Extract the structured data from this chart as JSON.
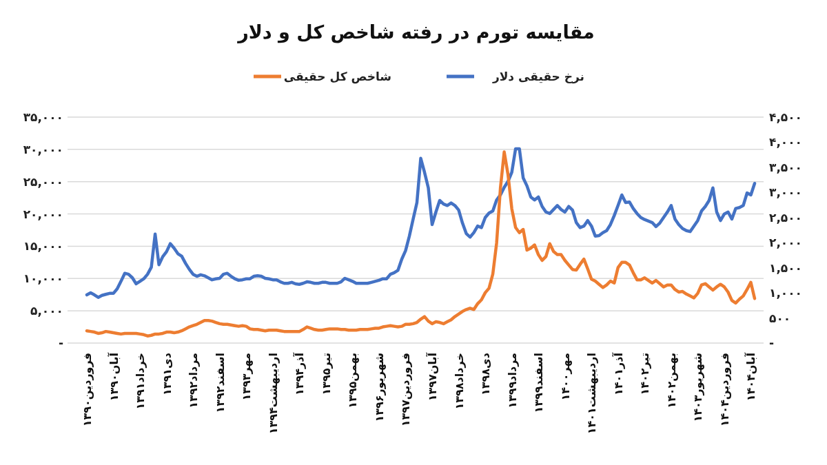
{
  "chart_data": {
    "type": "line",
    "title": "مقایسه تورم در رفته شاخص کل و دلار",
    "categories": [
      "فروردین۱۳۹۰",
      null,
      null,
      null,
      null,
      null,
      null,
      "آبان۱۳۹۰",
      null,
      null,
      null,
      null,
      null,
      null,
      "خرداد۱۳۹۱",
      null,
      null,
      null,
      null,
      null,
      null,
      "دی۱۳۹۱",
      null,
      null,
      null,
      null,
      null,
      null,
      "مرداد۱۳۹۲",
      null,
      null,
      null,
      null,
      null,
      null,
      "اسفند۱۳۹۲",
      null,
      null,
      null,
      null,
      null,
      null,
      "مهر۱۳۹۳",
      null,
      null,
      null,
      null,
      null,
      null,
      "اردیبهشت۱۳۹۴",
      null,
      null,
      null,
      null,
      null,
      null,
      "آذر۱۳۹۴",
      null,
      null,
      null,
      null,
      null,
      null,
      "تیر۱۳۹۵",
      null,
      null,
      null,
      null,
      null,
      null,
      "بهمن۱۳۹۵",
      null,
      null,
      null,
      null,
      null,
      null,
      "شهریور۱۳۹۶",
      null,
      null,
      null,
      null,
      null,
      null,
      "فروردین۱۳۹۷",
      null,
      null,
      null,
      null,
      null,
      null,
      "آبان۱۳۹۷",
      null,
      null,
      null,
      null,
      null,
      null,
      "خرداد۱۳۹۸",
      null,
      null,
      null,
      null,
      null,
      null,
      "دی۱۳۹۸",
      null,
      null,
      null,
      null,
      null,
      null,
      "مرداد۱۳۹۹",
      null,
      null,
      null,
      null,
      null,
      null,
      "اسفند۱۳۹۹",
      null,
      null,
      null,
      null,
      null,
      null,
      "مهر۱۴۰۰",
      null,
      null,
      null,
      null,
      null,
      null,
      "اردیبهشت۱۴۰۱",
      null,
      null,
      null,
      null,
      null,
      null,
      "آذر۱۴۰۱",
      null,
      null,
      null,
      null,
      null,
      null,
      "تیر۱۴۰۲",
      null,
      null,
      null,
      null,
      null,
      null,
      "بهمن۱۴۰۲",
      null,
      null,
      null,
      null,
      null,
      null,
      "شهریور۱۴۰۳",
      null,
      null,
      null,
      null,
      null,
      null,
      "فروردین۱۴۰۴",
      null,
      null,
      null,
      null,
      null,
      null,
      "آبان۱۴۰۴",
      null
    ],
    "series": [
      {
        "name": "نرخ حقیقی دلار",
        "color": "#4472c4",
        "axis": "y2",
        "values": [
          960,
          1000,
          960,
          910,
          950,
          970,
          990,
          990,
          1080,
          1230,
          1390,
          1370,
          1300,
          1180,
          1230,
          1280,
          1370,
          1510,
          2170,
          1560,
          1720,
          1820,
          1980,
          1890,
          1780,
          1730,
          1590,
          1470,
          1370,
          1330,
          1360,
          1340,
          1300,
          1260,
          1280,
          1290,
          1370,
          1390,
          1330,
          1280,
          1250,
          1260,
          1280,
          1280,
          1330,
          1340,
          1330,
          1290,
          1280,
          1260,
          1260,
          1220,
          1190,
          1190,
          1210,
          1180,
          1170,
          1190,
          1220,
          1210,
          1190,
          1190,
          1210,
          1210,
          1190,
          1190,
          1190,
          1220,
          1290,
          1260,
          1230,
          1190,
          1190,
          1190,
          1190,
          1210,
          1230,
          1250,
          1280,
          1280,
          1370,
          1400,
          1450,
          1670,
          1840,
          2130,
          2470,
          2800,
          3680,
          3400,
          3090,
          2360,
          2610,
          2840,
          2770,
          2740,
          2790,
          2740,
          2650,
          2390,
          2180,
          2110,
          2200,
          2330,
          2300,
          2500,
          2590,
          2630,
          2850,
          2950,
          3100,
          3220,
          3400,
          3870,
          3870,
          3290,
          3130,
          2910,
          2850,
          2910,
          2720,
          2610,
          2580,
          2660,
          2740,
          2660,
          2610,
          2720,
          2650,
          2400,
          2300,
          2330,
          2440,
          2330,
          2130,
          2140,
          2200,
          2240,
          2360,
          2540,
          2740,
          2950,
          2800,
          2810,
          2680,
          2580,
          2500,
          2460,
          2430,
          2400,
          2320,
          2390,
          2500,
          2610,
          2740,
          2470,
          2360,
          2280,
          2240,
          2220,
          2330,
          2440,
          2630,
          2720,
          2840,
          3090,
          2610,
          2440,
          2570,
          2610,
          2470,
          2680,
          2700,
          2740,
          2990,
          2950,
          3180
        ]
      },
      {
        "name": "شاخص کل حقیقی",
        "color": "#ed7d31",
        "values": [
          1900,
          1800,
          1700,
          1500,
          1600,
          1800,
          1700,
          1600,
          1500,
          1400,
          1500,
          1500,
          1500,
          1500,
          1400,
          1300,
          1100,
          1200,
          1400,
          1400,
          1500,
          1700,
          1700,
          1600,
          1700,
          1900,
          2200,
          2500,
          2700,
          2900,
          3200,
          3500,
          3500,
          3400,
          3200,
          3000,
          2900,
          2900,
          2800,
          2700,
          2600,
          2700,
          2600,
          2200,
          2100,
          2100,
          2000,
          1900,
          2000,
          2000,
          2000,
          1900,
          1800,
          1800,
          1800,
          1800,
          1800,
          2100,
          2500,
          2300,
          2100,
          2000,
          2000,
          2100,
          2200,
          2200,
          2200,
          2100,
          2100,
          2000,
          2000,
          2000,
          2100,
          2100,
          2100,
          2200,
          2300,
          2300,
          2500,
          2600,
          2700,
          2600,
          2500,
          2600,
          2900,
          2900,
          3000,
          3200,
          3700,
          4100,
          3400,
          3000,
          3300,
          3200,
          3000,
          3300,
          3600,
          4100,
          4500,
          4900,
          5200,
          5400,
          5200,
          6100,
          6700,
          7800,
          8500,
          10700,
          15500,
          24000,
          29600,
          26100,
          20800,
          17900,
          17100,
          17600,
          14400,
          14700,
          15200,
          13700,
          12800,
          13400,
          15400,
          14200,
          13700,
          13700,
          12800,
          12100,
          11400,
          11300,
          12200,
          13000,
          11500,
          9900,
          9600,
          9100,
          8600,
          9000,
          9600,
          9300,
          11700,
          12500,
          12500,
          12100,
          10900,
          9800,
          9800,
          10100,
          9700,
          9300,
          9700,
          9200,
          8700,
          9000,
          9000,
          8300,
          7900,
          8000,
          7600,
          7300,
          7000,
          7700,
          9000,
          9200,
          8700,
          8200,
          8700,
          9100,
          8700,
          7900,
          6600,
          6200,
          6800,
          7300,
          8300,
          9400,
          6900
        ]
      }
    ],
    "ylim": [
      0,
      35000
    ],
    "yticks": [
      {
        "value": 0,
        "label": "-"
      },
      {
        "value": 5000,
        "label": "۵,۰۰۰"
      },
      {
        "value": 10000,
        "label": "۱۰,۰۰۰"
      },
      {
        "value": 15000,
        "label": "۱۵,۰۰۰"
      },
      {
        "value": 20000,
        "label": "۲۰,۰۰۰"
      },
      {
        "value": 25000,
        "label": "۲۵,۰۰۰"
      },
      {
        "value": 30000,
        "label": "۳۰,۰۰۰"
      },
      {
        "value": 35000,
        "label": "۳۵,۰۰۰"
      }
    ],
    "y2lim": [
      0,
      4500
    ],
    "y2ticks": [
      {
        "value": 0,
        "label": "-"
      },
      {
        "value": 500,
        "label": "۵۰۰"
      },
      {
        "value": 1000,
        "label": "۱,۰۰۰"
      },
      {
        "value": 1500,
        "label": "۱,۵۰۰"
      },
      {
        "value": 2000,
        "label": "۲,۰۰۰"
      },
      {
        "value": 2500,
        "label": "۲,۵۰۰"
      },
      {
        "value": 3000,
        "label": "۳,۰۰۰"
      },
      {
        "value": 3500,
        "label": "۳,۵۰۰"
      },
      {
        "value": 4000,
        "label": "۴,۰۰۰"
      },
      {
        "value": 4500,
        "label": "۴,۵۰۰"
      }
    ],
    "grid": "y",
    "legend": "top",
    "marker": "none",
    "line_style": "solid"
  }
}
